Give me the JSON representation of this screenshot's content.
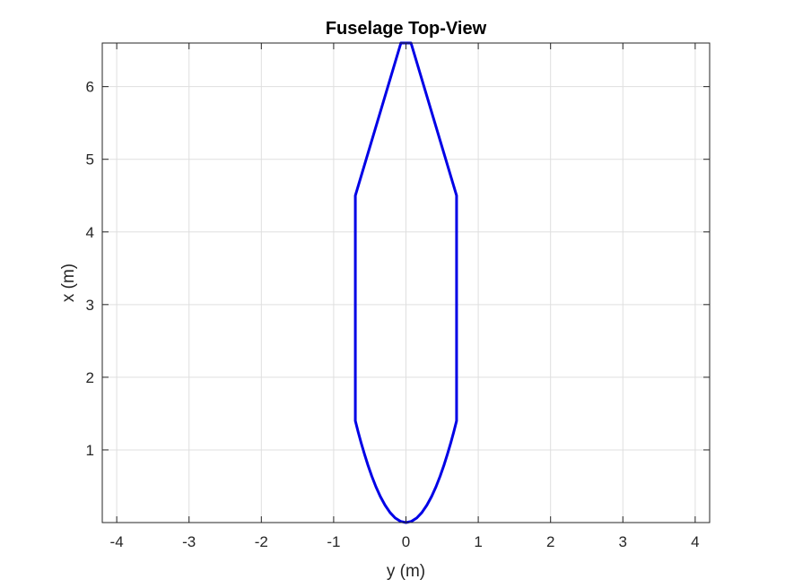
{
  "chart_data": {
    "type": "line",
    "title": "Fuselage Top-View",
    "xlabel": "y (m)",
    "ylabel": "x (m)",
    "xlim": [
      -4.2,
      4.2
    ],
    "ylim": [
      0,
      6.6
    ],
    "xticks": [
      -4,
      -3,
      -2,
      -1,
      0,
      1,
      2,
      3,
      4
    ],
    "yticks": [
      1,
      2,
      3,
      4,
      5,
      6
    ],
    "xtick_labels": [
      "-4",
      "-3",
      "-2",
      "-1",
      "0",
      "1",
      "2",
      "3",
      "4"
    ],
    "ytick_labels": [
      "1",
      "2",
      "3",
      "4",
      "5",
      "6"
    ],
    "grid": true,
    "series": [
      {
        "color": "#0000e6",
        "points": [
          [
            -0.07,
            6.6
          ],
          [
            0.07,
            6.6
          ],
          [
            0.7,
            4.5
          ],
          [
            0.7,
            1.4
          ],
          [
            0.662,
            1.251
          ],
          [
            0.62,
            1.098
          ],
          [
            0.574,
            0.943
          ],
          [
            0.525,
            0.788
          ],
          [
            0.472,
            0.637
          ],
          [
            0.415,
            0.492
          ],
          [
            0.354,
            0.358
          ],
          [
            0.289,
            0.239
          ],
          [
            0.22,
            0.138
          ],
          [
            0.149,
            0.063
          ],
          [
            0.075,
            0.016
          ],
          [
            0.0,
            0.0
          ],
          [
            -0.075,
            0.016
          ],
          [
            -0.149,
            0.063
          ],
          [
            -0.22,
            0.138
          ],
          [
            -0.289,
            0.239
          ],
          [
            -0.354,
            0.358
          ],
          [
            -0.415,
            0.492
          ],
          [
            -0.472,
            0.637
          ],
          [
            -0.525,
            0.788
          ],
          [
            -0.574,
            0.943
          ],
          [
            -0.62,
            1.098
          ],
          [
            -0.662,
            1.251
          ],
          [
            -0.7,
            1.4
          ],
          [
            -0.7,
            4.5
          ],
          [
            -0.07,
            6.6
          ]
        ]
      }
    ]
  }
}
